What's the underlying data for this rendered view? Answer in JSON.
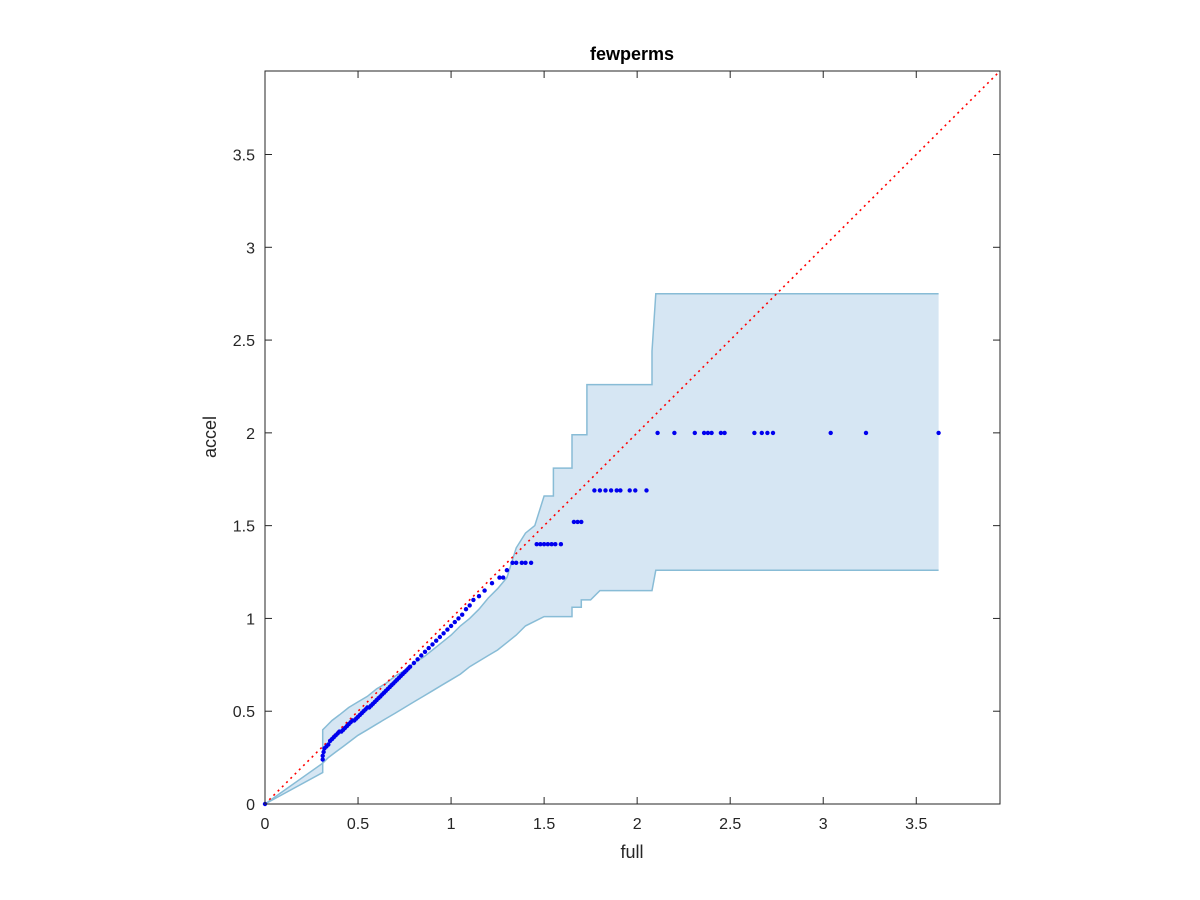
{
  "chart_data": {
    "type": "scatter",
    "title": "fewperms",
    "xlabel": "full",
    "ylabel": "accel",
    "xlim": [
      0,
      3.95
    ],
    "ylim": [
      0,
      3.95
    ],
    "xticks": [
      0,
      0.5,
      1,
      1.5,
      2,
      2.5,
      3,
      3.5
    ],
    "yticks": [
      0,
      0.5,
      1,
      1.5,
      2,
      2.5,
      3,
      3.5
    ],
    "grid": false,
    "legend": "none",
    "colors": {
      "band_fill": "#d6e6f3",
      "band_edge": "#88bcd6",
      "points": "#0000ee",
      "reference_line": "#ff0000",
      "axes": "#262626"
    },
    "reference_line": {
      "style": "dotted",
      "from": [
        0,
        0
      ],
      "to": [
        3.95,
        3.95
      ]
    },
    "band": {
      "upper": [
        [
          0,
          0
        ],
        [
          0.31,
          0.17
        ],
        [
          0.31,
          0.4
        ],
        [
          0.33,
          0.42
        ],
        [
          0.36,
          0.45
        ],
        [
          0.4,
          0.48
        ],
        [
          0.45,
          0.52
        ],
        [
          0.5,
          0.55
        ],
        [
          0.55,
          0.58
        ],
        [
          0.6,
          0.62
        ],
        [
          0.65,
          0.65
        ],
        [
          0.7,
          0.69
        ],
        [
          0.75,
          0.72
        ],
        [
          0.8,
          0.76
        ],
        [
          0.85,
          0.79
        ],
        [
          0.9,
          0.83
        ],
        [
          0.95,
          0.87
        ],
        [
          1.0,
          0.91
        ],
        [
          1.05,
          0.96
        ],
        [
          1.1,
          1.0
        ],
        [
          1.15,
          1.05
        ],
        [
          1.2,
          1.11
        ],
        [
          1.25,
          1.16
        ],
        [
          1.3,
          1.22
        ],
        [
          1.35,
          1.38
        ],
        [
          1.4,
          1.46
        ],
        [
          1.45,
          1.5
        ],
        [
          1.5,
          1.66
        ],
        [
          1.55,
          1.66
        ],
        [
          1.55,
          1.81
        ],
        [
          1.65,
          1.81
        ],
        [
          1.65,
          1.99
        ],
        [
          1.73,
          1.99
        ],
        [
          1.73,
          2.26
        ],
        [
          2.08,
          2.26
        ],
        [
          2.08,
          2.44
        ],
        [
          2.1,
          2.75
        ],
        [
          3.62,
          2.75
        ]
      ],
      "lower": [
        [
          0,
          0
        ],
        [
          0.31,
          0.22
        ],
        [
          0.34,
          0.25
        ],
        [
          0.38,
          0.28
        ],
        [
          0.42,
          0.31
        ],
        [
          0.46,
          0.34
        ],
        [
          0.5,
          0.37
        ],
        [
          0.55,
          0.4
        ],
        [
          0.6,
          0.43
        ],
        [
          0.65,
          0.46
        ],
        [
          0.7,
          0.49
        ],
        [
          0.75,
          0.52
        ],
        [
          0.8,
          0.55
        ],
        [
          0.85,
          0.58
        ],
        [
          0.9,
          0.61
        ],
        [
          0.95,
          0.64
        ],
        [
          1.0,
          0.67
        ],
        [
          1.05,
          0.7
        ],
        [
          1.1,
          0.74
        ],
        [
          1.15,
          0.77
        ],
        [
          1.2,
          0.8
        ],
        [
          1.25,
          0.83
        ],
        [
          1.3,
          0.87
        ],
        [
          1.35,
          0.91
        ],
        [
          1.4,
          0.96
        ],
        [
          1.5,
          1.01
        ],
        [
          1.65,
          1.01
        ],
        [
          1.65,
          1.06
        ],
        [
          1.7,
          1.06
        ],
        [
          1.7,
          1.1
        ],
        [
          1.75,
          1.1
        ],
        [
          1.8,
          1.15
        ],
        [
          2.08,
          1.15
        ],
        [
          2.1,
          1.26
        ],
        [
          3.62,
          1.26
        ]
      ]
    },
    "series": [
      {
        "points": [
          [
            0,
            0
          ],
          [
            0.31,
            0.24
          ],
          [
            0.31,
            0.26
          ],
          [
            0.315,
            0.28
          ],
          [
            0.32,
            0.3
          ],
          [
            0.33,
            0.31
          ],
          [
            0.34,
            0.32
          ],
          [
            0.35,
            0.34
          ],
          [
            0.36,
            0.35
          ],
          [
            0.37,
            0.36
          ],
          [
            0.38,
            0.37
          ],
          [
            0.39,
            0.38
          ],
          [
            0.4,
            0.39
          ],
          [
            0.41,
            0.39
          ],
          [
            0.42,
            0.4
          ],
          [
            0.43,
            0.41
          ],
          [
            0.44,
            0.42
          ],
          [
            0.45,
            0.43
          ],
          [
            0.46,
            0.44
          ],
          [
            0.47,
            0.45
          ],
          [
            0.48,
            0.45
          ],
          [
            0.49,
            0.46
          ],
          [
            0.5,
            0.47
          ],
          [
            0.51,
            0.48
          ],
          [
            0.52,
            0.49
          ],
          [
            0.53,
            0.5
          ],
          [
            0.54,
            0.51
          ],
          [
            0.55,
            0.52
          ],
          [
            0.56,
            0.52
          ],
          [
            0.57,
            0.53
          ],
          [
            0.58,
            0.54
          ],
          [
            0.59,
            0.55
          ],
          [
            0.6,
            0.56
          ],
          [
            0.61,
            0.57
          ],
          [
            0.62,
            0.58
          ],
          [
            0.63,
            0.59
          ],
          [
            0.64,
            0.6
          ],
          [
            0.65,
            0.61
          ],
          [
            0.66,
            0.62
          ],
          [
            0.67,
            0.63
          ],
          [
            0.68,
            0.64
          ],
          [
            0.69,
            0.65
          ],
          [
            0.7,
            0.66
          ],
          [
            0.71,
            0.67
          ],
          [
            0.72,
            0.68
          ],
          [
            0.73,
            0.69
          ],
          [
            0.74,
            0.7
          ],
          [
            0.75,
            0.71
          ],
          [
            0.76,
            0.72
          ],
          [
            0.77,
            0.73
          ],
          [
            0.78,
            0.74
          ],
          [
            0.8,
            0.76
          ],
          [
            0.82,
            0.78
          ],
          [
            0.84,
            0.8
          ],
          [
            0.86,
            0.82
          ],
          [
            0.88,
            0.84
          ],
          [
            0.9,
            0.86
          ],
          [
            0.92,
            0.88
          ],
          [
            0.94,
            0.9
          ],
          [
            0.96,
            0.92
          ],
          [
            0.98,
            0.94
          ],
          [
            1.0,
            0.96
          ],
          [
            1.02,
            0.98
          ],
          [
            1.04,
            1.0
          ],
          [
            1.06,
            1.02
          ],
          [
            1.08,
            1.05
          ],
          [
            1.1,
            1.07
          ],
          [
            1.12,
            1.1
          ],
          [
            1.15,
            1.12
          ],
          [
            1.18,
            1.15
          ],
          [
            1.22,
            1.19
          ],
          [
            1.26,
            1.22
          ],
          [
            1.28,
            1.22
          ],
          [
            1.3,
            1.26
          ],
          [
            1.33,
            1.3
          ],
          [
            1.35,
            1.3
          ],
          [
            1.38,
            1.3
          ],
          [
            1.4,
            1.3
          ],
          [
            1.43,
            1.3
          ],
          [
            1.46,
            1.4
          ],
          [
            1.48,
            1.4
          ],
          [
            1.5,
            1.4
          ],
          [
            1.52,
            1.4
          ],
          [
            1.54,
            1.4
          ],
          [
            1.56,
            1.4
          ],
          [
            1.59,
            1.4
          ],
          [
            1.66,
            1.52
          ],
          [
            1.68,
            1.52
          ],
          [
            1.7,
            1.52
          ],
          [
            1.77,
            1.69
          ],
          [
            1.8,
            1.69
          ],
          [
            1.83,
            1.69
          ],
          [
            1.86,
            1.69
          ],
          [
            1.89,
            1.69
          ],
          [
            1.91,
            1.69
          ],
          [
            1.96,
            1.69
          ],
          [
            1.99,
            1.69
          ],
          [
            2.05,
            1.69
          ],
          [
            2.11,
            2.0
          ],
          [
            2.2,
            2.0
          ],
          [
            2.31,
            2.0
          ],
          [
            2.36,
            2.0
          ],
          [
            2.38,
            2.0
          ],
          [
            2.4,
            2.0
          ],
          [
            2.45,
            2.0
          ],
          [
            2.47,
            2.0
          ],
          [
            2.63,
            2.0
          ],
          [
            2.67,
            2.0
          ],
          [
            2.7,
            2.0
          ],
          [
            2.73,
            2.0
          ],
          [
            3.04,
            2.0
          ],
          [
            3.23,
            2.0
          ],
          [
            3.62,
            2.0
          ]
        ]
      }
    ]
  }
}
